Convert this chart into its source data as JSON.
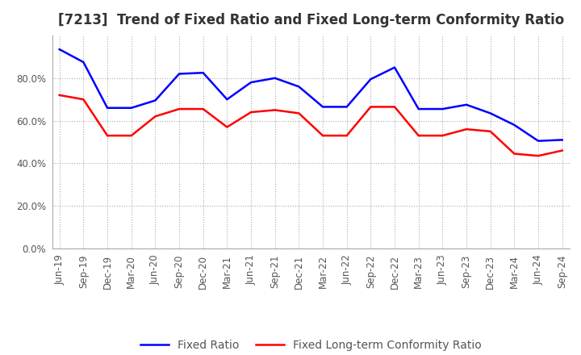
{
  "title": "[7213]  Trend of Fixed Ratio and Fixed Long-term Conformity Ratio",
  "x_labels": [
    "Jun-19",
    "Sep-19",
    "Dec-19",
    "Mar-20",
    "Jun-20",
    "Sep-20",
    "Dec-20",
    "Mar-21",
    "Jun-21",
    "Sep-21",
    "Dec-21",
    "Mar-22",
    "Jun-22",
    "Sep-22",
    "Dec-22",
    "Mar-23",
    "Jun-23",
    "Sep-23",
    "Dec-23",
    "Mar-24",
    "Jun-24",
    "Sep-24"
  ],
  "fixed_ratio": [
    93.5,
    87.5,
    66.0,
    66.0,
    69.5,
    82.0,
    82.5,
    70.0,
    78.0,
    80.0,
    76.0,
    66.5,
    66.5,
    79.5,
    85.0,
    65.5,
    65.5,
    67.5,
    63.5,
    58.0,
    50.5,
    51.0
  ],
  "fixed_lt_ratio": [
    72.0,
    70.0,
    53.0,
    53.0,
    62.0,
    65.5,
    65.5,
    57.0,
    64.0,
    65.0,
    63.5,
    53.0,
    53.0,
    66.5,
    66.5,
    53.0,
    53.0,
    56.0,
    55.0,
    44.5,
    43.5,
    46.0
  ],
  "fixed_ratio_color": "#0000FF",
  "fixed_lt_ratio_color": "#FF0000",
  "background_color": "#FFFFFF",
  "plot_bg_color": "#FFFFFF",
  "grid_color": "#AAAAAA",
  "ylim": [
    0,
    100
  ],
  "yticks": [
    0,
    20,
    40,
    60,
    80
  ],
  "title_fontsize": 12,
  "legend_fontsize": 10,
  "tick_fontsize": 8.5
}
